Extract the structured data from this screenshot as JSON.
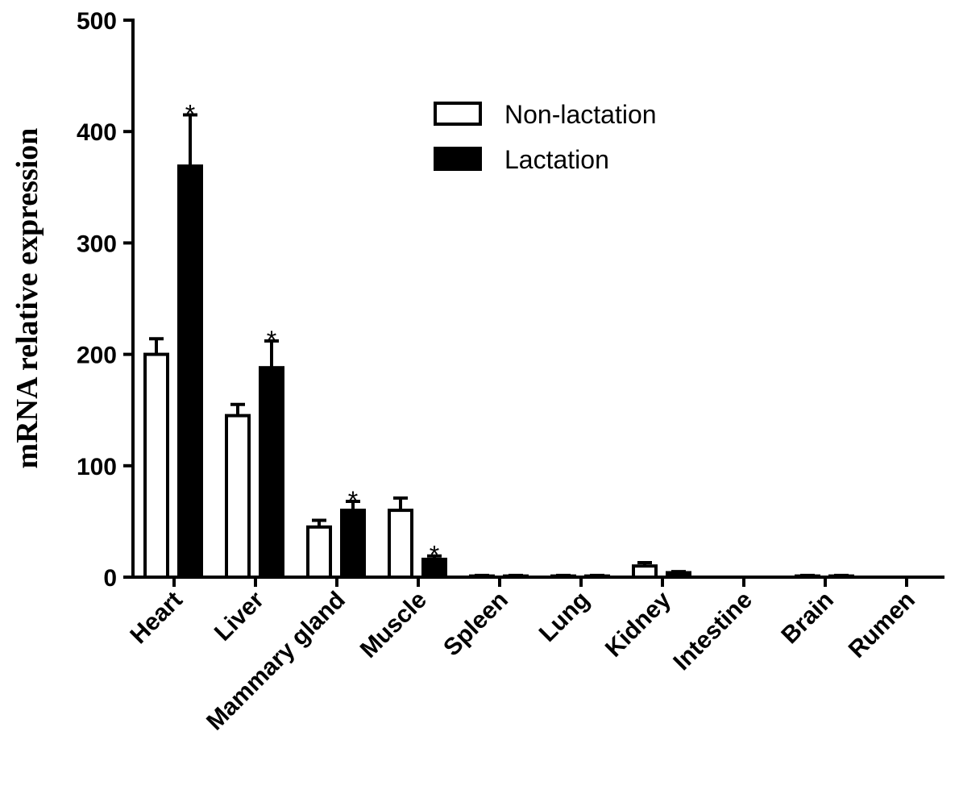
{
  "chart_data": {
    "type": "bar",
    "title": "",
    "xlabel": "",
    "ylabel": "mRNA relative expression",
    "ylim": [
      0,
      500
    ],
    "yticks": [
      0,
      100,
      200,
      300,
      400,
      500
    ],
    "grid": false,
    "legend_position": "top-right",
    "categories": [
      "Heart",
      "Liver",
      "Mammary gland",
      "Muscle",
      "Spleen",
      "Lung",
      "Kidney",
      "Intestine",
      "Brain",
      "Rumen"
    ],
    "series": [
      {
        "name": "Non-lactation",
        "fill": "#ffffff",
        "values": [
          200,
          145,
          45,
          60,
          1,
          1,
          10,
          0,
          1,
          0
        ],
        "errors": [
          14,
          10,
          6,
          11,
          0.5,
          0.5,
          3,
          0,
          0.5,
          0
        ]
      },
      {
        "name": "Lactation",
        "fill": "#000000",
        "values": [
          369,
          188,
          60,
          16,
          1,
          1,
          4,
          0,
          1,
          0
        ],
        "errors": [
          46,
          24,
          8,
          3,
          0.5,
          0.5,
          1,
          0,
          0.5,
          0
        ]
      }
    ],
    "annotations": [
      {
        "category": "Heart",
        "series": "Lactation",
        "text": "*"
      },
      {
        "category": "Liver",
        "series": "Lactation",
        "text": "*"
      },
      {
        "category": "Mammary gland",
        "series": "Lactation",
        "text": "*"
      },
      {
        "category": "Muscle",
        "series": "Lactation",
        "text": "*"
      }
    ]
  }
}
